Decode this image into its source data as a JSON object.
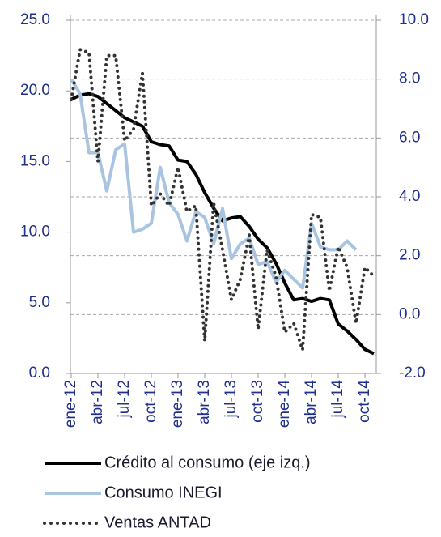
{
  "chart_data": {
    "type": "line",
    "categories": [
      "ene-12",
      null,
      null,
      "abr-12",
      null,
      null,
      "jul-12",
      null,
      null,
      "oct-12",
      null,
      null,
      "ene-13",
      null,
      null,
      "abr-13",
      null,
      null,
      "jul-13",
      null,
      null,
      "oct-13",
      null,
      null,
      "ene-14",
      null,
      null,
      "abr-14",
      null,
      null,
      "jul-14",
      null,
      null,
      "oct-14",
      null
    ],
    "series": [
      {
        "name": "Crédito al consumo (eje izq.)",
        "color": "#000000",
        "style": "solid",
        "width": 4,
        "axis": "y",
        "values": [
          19.4,
          19.7,
          19.8,
          19.6,
          19.1,
          18.6,
          18.1,
          17.8,
          17.5,
          16.4,
          16.2,
          16.1,
          15.1,
          15.0,
          14.1,
          12.8,
          11.7,
          10.8,
          11.0,
          11.1,
          10.4,
          9.5,
          8.9,
          7.8,
          6.4,
          5.2,
          5.3,
          5.1,
          5.3,
          5.2,
          3.5,
          3.0,
          2.4,
          1.7,
          1.4
        ]
      },
      {
        "name": "Consumo INEGI",
        "color": "#a9c4e0",
        "style": "solid",
        "width": 4,
        "axis": "y2",
        "values": [
          8.0,
          7.5,
          5.5,
          5.5,
          4.2,
          5.6,
          5.8,
          2.8,
          2.9,
          3.1,
          5.0,
          3.8,
          3.4,
          2.5,
          3.5,
          3.3,
          2.4,
          3.6,
          1.9,
          2.4,
          2.6,
          1.7,
          1.8,
          1.1,
          1.5,
          1.2,
          0.9,
          3.1,
          2.3,
          2.2,
          2.2,
          2.5,
          2.2,
          null,
          null
        ]
      },
      {
        "name": "Ventas ANTAD",
        "color": "#333333",
        "style": "dotted",
        "width": 4,
        "axis": "y2",
        "values": [
          7.3,
          9.0,
          8.9,
          5.2,
          8.8,
          8.8,
          5.9,
          6.3,
          8.2,
          3.7,
          4.1,
          3.7,
          5.0,
          3.5,
          3.7,
          -0.9,
          3.8,
          2.2,
          0.5,
          1.2,
          2.7,
          -0.5,
          2.2,
          1.3,
          -0.6,
          -0.3,
          -1.2,
          3.4,
          3.3,
          0.8,
          2.3,
          1.6,
          -0.3,
          1.6,
          1.3
        ]
      }
    ],
    "ylim": [
      0,
      25
    ],
    "yticks": [
      {
        "value": 0,
        "label": "0.0"
      },
      {
        "value": 5,
        "label": "5.0"
      },
      {
        "value": 10,
        "label": "10.0"
      },
      {
        "value": 15,
        "label": "15.0"
      },
      {
        "value": 20,
        "label": "20.0"
      },
      {
        "value": 25,
        "label": "25.0"
      }
    ],
    "y2lim": [
      -2,
      10
    ],
    "y2ticks": [
      {
        "value": -2,
        "label": "-2.0"
      },
      {
        "value": 0,
        "label": "0.0"
      },
      {
        "value": 2,
        "label": "2.0"
      },
      {
        "value": 4,
        "label": "4.0"
      },
      {
        "value": 6,
        "label": "6.0"
      },
      {
        "value": 8,
        "label": "8.0"
      },
      {
        "value": 10,
        "label": "10.0"
      }
    ],
    "grid": "y2",
    "legend": "bottom"
  }
}
